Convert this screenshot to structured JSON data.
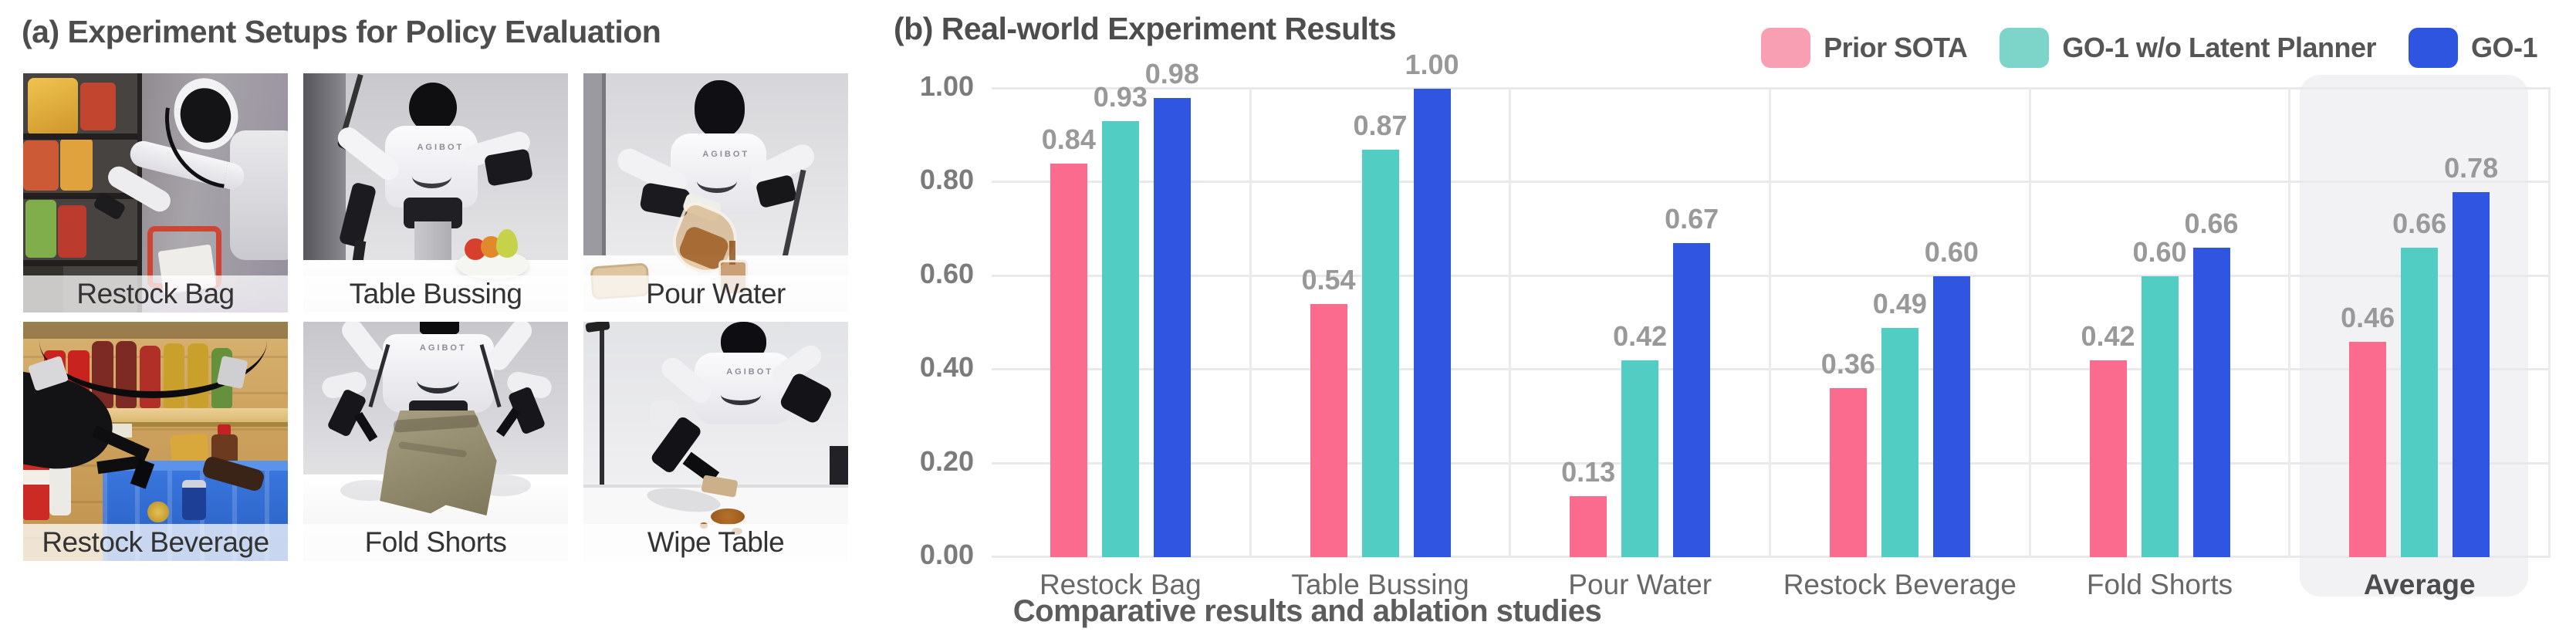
{
  "figure": {
    "panel_a_title": "(a) Experiment Setups for Policy Evaluation",
    "panel_b_title": "(b) Real-world Experiment Results",
    "caption": "Comparative results and ablation studies",
    "robot_logo": "AGIBOT"
  },
  "setups": [
    {
      "label": "Restock Bag"
    },
    {
      "label": "Table Bussing"
    },
    {
      "label": "Pour Water"
    },
    {
      "label": "Restock Beverage"
    },
    {
      "label": "Fold Shorts"
    },
    {
      "label": "Wipe Table"
    }
  ],
  "chart_data": {
    "type": "bar",
    "title": "(b) Real-world Experiment Results",
    "categories": [
      "Restock Bag",
      "Table Bussing",
      "Pour Water",
      "Restock Beverage",
      "Fold Shorts",
      "Average"
    ],
    "series": [
      {
        "name": "Prior SOTA",
        "color": "#FB6B8D",
        "legend_color": "#F99FB4",
        "values": [
          0.84,
          0.54,
          0.13,
          0.36,
          0.42,
          0.46
        ]
      },
      {
        "name": "GO-1 w/o Latent Planner",
        "color": "#52CDC3",
        "legend_color": "#7DD5CA",
        "values": [
          0.93,
          0.87,
          0.42,
          0.49,
          0.6,
          0.66
        ]
      },
      {
        "name": "GO-1",
        "color": "#3056E1",
        "legend_color": "#2E55DF",
        "values": [
          0.98,
          1.0,
          0.67,
          0.6,
          0.66,
          0.78
        ]
      }
    ],
    "xlabel": "",
    "ylabel": "",
    "ylim": [
      0,
      1
    ],
    "yticks": [
      "0.00",
      "0.20",
      "0.40",
      "0.60",
      "0.80",
      "1.00"
    ],
    "grid": true,
    "grid_color": "#E9E9EB",
    "legend_position": "top-right",
    "highlight_category": "Average",
    "highlight_color": "#F2F2F4",
    "value_labels": true
  }
}
